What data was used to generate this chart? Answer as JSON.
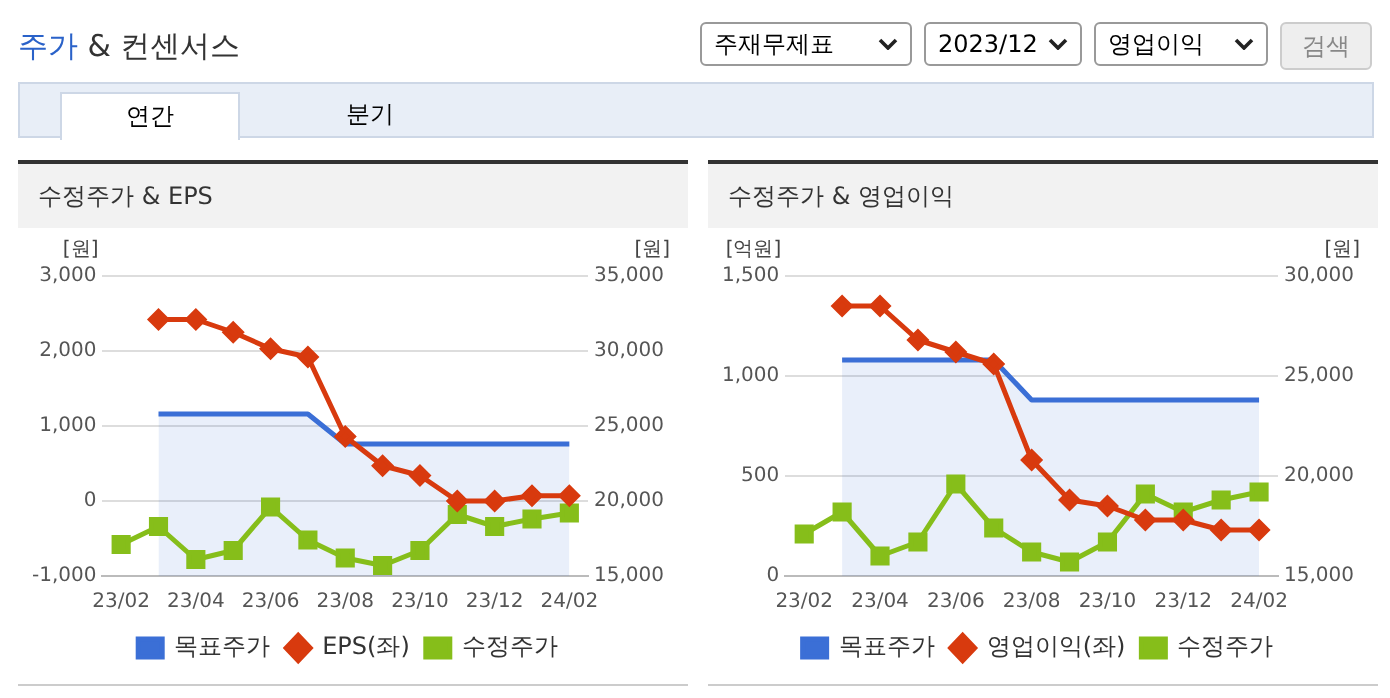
{
  "chart_data": [
    {
      "type": "other",
      "title": "주가 & 컨센서스",
      "annotations": [
        "주재무제표",
        "2023/12",
        "영업이익",
        "검색",
        "연간",
        "분기"
      ]
    },
    {
      "type": "line",
      "title": "수정주가 & EPS",
      "ylabel": "[원]",
      "y2label": "[원]",
      "categories": [
        "23/02",
        null,
        "23/04",
        null,
        "23/06",
        null,
        "23/08",
        null,
        "23/10",
        null,
        "23/12",
        null,
        "24/02"
      ],
      "series": [
        {
          "name": "목표주가",
          "type": "area",
          "axis": "y2",
          "color": "#3b6fd6",
          "marker": "none",
          "values": [
            null,
            25800,
            25800,
            25800,
            25800,
            25800,
            23800,
            23800,
            23800,
            23800,
            23800,
            23800,
            23800
          ]
        },
        {
          "name": "EPS(좌)",
          "type": "line",
          "color": "#d83a0e",
          "marker": "diamond",
          "values": [
            null,
            2420,
            2420,
            2250,
            2030,
            1920,
            860,
            470,
            340,
            0,
            0,
            70,
            70
          ]
        },
        {
          "name": "수정주가",
          "type": "line",
          "axis": "y2",
          "color": "#86be1a",
          "marker": "square",
          "values": [
            17100,
            18300,
            16100,
            16700,
            19600,
            17400,
            16200,
            15700,
            16700,
            19100,
            18300,
            18800,
            19200
          ]
        }
      ],
      "ylim": [
        -1000,
        3000
      ],
      "yticks": [
        {
          "value": -1000,
          "label": "-1,000"
        },
        0,
        {
          "value": 1000,
          "label": "1,000"
        },
        {
          "value": 2000,
          "label": "2,000"
        },
        {
          "value": 3000,
          "label": "3,000"
        }
      ],
      "y2lim": [
        15000,
        35000
      ],
      "y2ticks": [
        {
          "value": 15000,
          "label": "15,000"
        },
        {
          "value": 20000,
          "label": "20,000"
        },
        {
          "value": 25000,
          "label": "25,000"
        },
        {
          "value": 30000,
          "label": "30,000"
        },
        {
          "value": 35000,
          "label": "35,000"
        }
      ],
      "grid": "y",
      "legend": "bottom"
    },
    {
      "type": "line",
      "title": "수정주가 & 영업이익",
      "ylabel": "[억원]",
      "y2label": "[원]",
      "categories": [
        "23/02",
        null,
        "23/04",
        null,
        "23/06",
        null,
        "23/08",
        null,
        "23/10",
        null,
        "23/12",
        null,
        "24/02"
      ],
      "series": [
        {
          "name": "목표주가",
          "type": "area",
          "axis": "y2",
          "color": "#3b6fd6",
          "marker": "none",
          "values": [
            null,
            25800,
            25800,
            25800,
            25800,
            25800,
            23800,
            23800,
            23800,
            23800,
            23800,
            23800,
            23800
          ]
        },
        {
          "name": "영업이익(좌)",
          "type": "line",
          "color": "#d83a0e",
          "marker": "diamond",
          "values": [
            null,
            1350,
            1350,
            1180,
            1120,
            1060,
            580,
            380,
            350,
            280,
            280,
            230,
            230
          ]
        },
        {
          "name": "수정주가",
          "type": "line",
          "axis": "y2",
          "color": "#86be1a",
          "marker": "square",
          "values": [
            17100,
            18200,
            16000,
            16700,
            19600,
            17400,
            16200,
            15700,
            16700,
            19100,
            18200,
            18800,
            19200
          ]
        }
      ],
      "ylim": [
        0,
        1500
      ],
      "yticks": [
        0,
        {
          "value": 500,
          "label": "500"
        },
        {
          "value": 1000,
          "label": "1,000"
        },
        {
          "value": 1500,
          "label": "1,500"
        }
      ],
      "y2lim": [
        15000,
        30000
      ],
      "y2ticks": [
        {
          "value": 15000,
          "label": "15,000"
        },
        {
          "value": 20000,
          "label": "20,000"
        },
        {
          "value": 25000,
          "label": "25,000"
        },
        {
          "value": 30000,
          "label": "30,000"
        }
      ],
      "grid": "y",
      "legend": "bottom"
    }
  ]
}
